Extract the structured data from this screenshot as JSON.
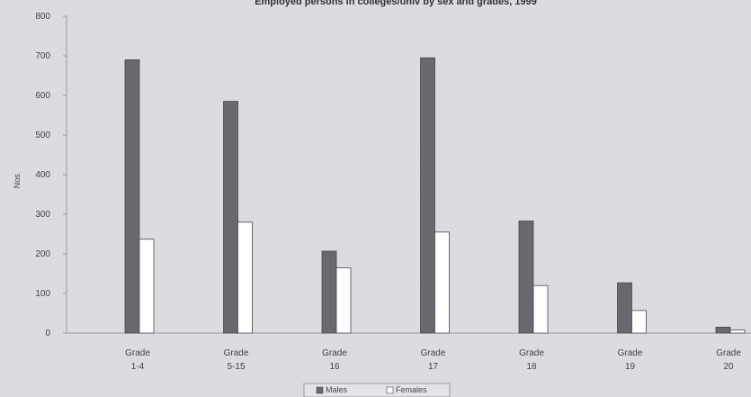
{
  "chart_data": {
    "type": "bar",
    "title": "Employed persons in colleges/univ by sex and grades, 1999",
    "ylabel": "Nos.",
    "xlabel": "",
    "ylim": [
      0,
      800
    ],
    "yticks": [
      0,
      100,
      200,
      300,
      400,
      500,
      600,
      700,
      800
    ],
    "categories": [
      [
        "Grade",
        "1-4"
      ],
      [
        "Grade",
        "5-15"
      ],
      [
        "Grade",
        "16"
      ],
      [
        "Grade",
        "17"
      ],
      [
        "Grade",
        "18"
      ],
      [
        "Grade",
        "19"
      ],
      [
        "Grade",
        "20"
      ]
    ],
    "series": [
      {
        "name": "Males",
        "values": [
          690,
          585,
          207,
          695,
          283,
          127,
          15
        ]
      },
      {
        "name": "Females",
        "values": [
          237,
          280,
          165,
          255,
          120,
          57,
          8
        ]
      }
    ],
    "legend": {
      "position": "bottom",
      "entries": [
        "Males",
        "Females"
      ]
    },
    "grid": false,
    "colors": {
      "males": "#6e6b74",
      "females": "#ffffff",
      "background": "#dcdbe0"
    }
  }
}
